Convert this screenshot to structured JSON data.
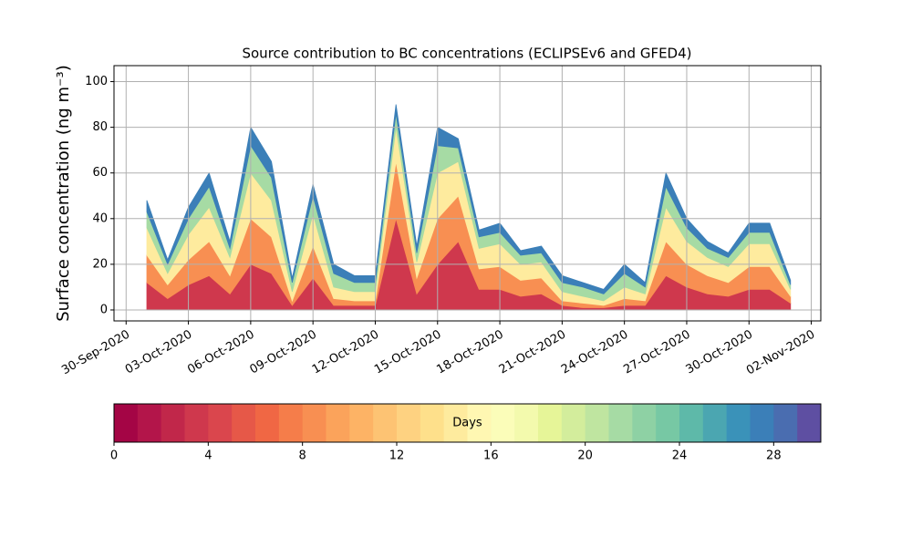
{
  "chart_data": {
    "type": "stacked_area",
    "title": "Source contribution to BC concentrations (ECLIPSEv6 and GFED4)",
    "ylabel": "Surface concentration (ng m⁻³)",
    "x": [
      "2020-10-01",
      "2020-10-02",
      "2020-10-03",
      "2020-10-04",
      "2020-10-05",
      "2020-10-06",
      "2020-10-07",
      "2020-10-08",
      "2020-10-09",
      "2020-10-10",
      "2020-10-11",
      "2020-10-12",
      "2020-10-13",
      "2020-10-14",
      "2020-10-15",
      "2020-10-16",
      "2020-10-17",
      "2020-10-18",
      "2020-10-19",
      "2020-10-20",
      "2020-10-21",
      "2020-10-22",
      "2020-10-23",
      "2020-10-24",
      "2020-10-25",
      "2020-10-26",
      "2020-10-27",
      "2020-10-28",
      "2020-10-29",
      "2020-10-30",
      "2020-10-31",
      "2020-11-01"
    ],
    "series": [
      {
        "color": "#cf384d",
        "values": [
          12,
          5,
          11,
          15,
          7,
          20,
          16,
          2,
          14,
          2,
          2,
          2,
          40,
          7,
          20,
          30,
          9,
          9,
          6,
          7,
          2,
          1,
          1,
          2,
          2,
          15,
          10,
          7,
          6,
          9,
          9,
          3
        ]
      },
      {
        "color": "#f88f52",
        "values": [
          12,
          6,
          11,
          15,
          8,
          20,
          16,
          2,
          14,
          3,
          2,
          2,
          25,
          7,
          20,
          20,
          9,
          10,
          7,
          7,
          2,
          2,
          1,
          3,
          2,
          15,
          10,
          8,
          6,
          10,
          10,
          3
        ]
      },
      {
        "color": "#feeb9e",
        "values": [
          12,
          5,
          11,
          15,
          8,
          20,
          16,
          4,
          14,
          5,
          4,
          4,
          15,
          7,
          20,
          15,
          9,
          10,
          7,
          7,
          4,
          3,
          2,
          5,
          3,
          15,
          10,
          8,
          7,
          10,
          10,
          3
        ]
      },
      {
        "color": "#a6dba4",
        "values": [
          7,
          4,
          7,
          9,
          4,
          12,
          10,
          4,
          8,
          6,
          4,
          4,
          6,
          4,
          12,
          6,
          5,
          5,
          4,
          4,
          4,
          4,
          3,
          6,
          3,
          9,
          6,
          4,
          4,
          5,
          5,
          2
        ]
      },
      {
        "color": "#3b7fb8",
        "values": [
          5,
          2,
          5,
          6,
          3,
          8,
          7,
          2,
          5,
          4,
          3,
          3,
          4,
          3,
          8,
          4,
          3,
          4,
          2,
          3,
          3,
          2,
          2,
          4,
          2,
          6,
          4,
          3,
          2,
          4,
          4,
          2
        ]
      }
    ],
    "xlim": [
      "2020-09-29T10:00Z",
      "2020-11-02T11:00Z"
    ],
    "xticks": [
      {
        "value": "2020-09-30",
        "label": "30-Sep-2020"
      },
      {
        "value": "2020-10-03",
        "label": "03-Oct-2020"
      },
      {
        "value": "2020-10-06",
        "label": "06-Oct-2020"
      },
      {
        "value": "2020-10-09",
        "label": "09-Oct-2020"
      },
      {
        "value": "2020-10-12",
        "label": "12-Oct-2020"
      },
      {
        "value": "2020-10-15",
        "label": "15-Oct-2020"
      },
      {
        "value": "2020-10-18",
        "label": "18-Oct-2020"
      },
      {
        "value": "2020-10-21",
        "label": "21-Oct-2020"
      },
      {
        "value": "2020-10-24",
        "label": "24-Oct-2020"
      },
      {
        "value": "2020-10-27",
        "label": "27-Oct-2020"
      },
      {
        "value": "2020-10-30",
        "label": "30-Oct-2020"
      },
      {
        "value": "2020-11-02",
        "label": "02-Nov-2020"
      }
    ],
    "ylim": [
      -4.8,
      107
    ],
    "yticks": [
      0,
      20,
      40,
      60,
      80,
      100
    ],
    "grid": true,
    "colorbar": {
      "label": "Days",
      "lim": [
        0,
        30
      ],
      "ticks": [
        0,
        4,
        8,
        12,
        16,
        20,
        24,
        28
      ],
      "colors": [
        "#a40545",
        "#b3154a",
        "#c1274a",
        "#cf384d",
        "#da464d",
        "#e65848",
        "#f06744",
        "#f57d4a",
        "#f88f52",
        "#fba35b",
        "#fdb365",
        "#fdc373",
        "#fed281",
        "#fee08b",
        "#feeb9e",
        "#fff7b2",
        "#fbfdb9",
        "#f3faad",
        "#e6f598",
        "#d3ed9c",
        "#bfe5a0",
        "#a6dba4",
        "#8ed1a4",
        "#77c8a4",
        "#5eb9a9",
        "#4ba6b1",
        "#3a92b9",
        "#3b7fb8",
        "#4a6db0",
        "#5e4fa2"
      ]
    }
  }
}
